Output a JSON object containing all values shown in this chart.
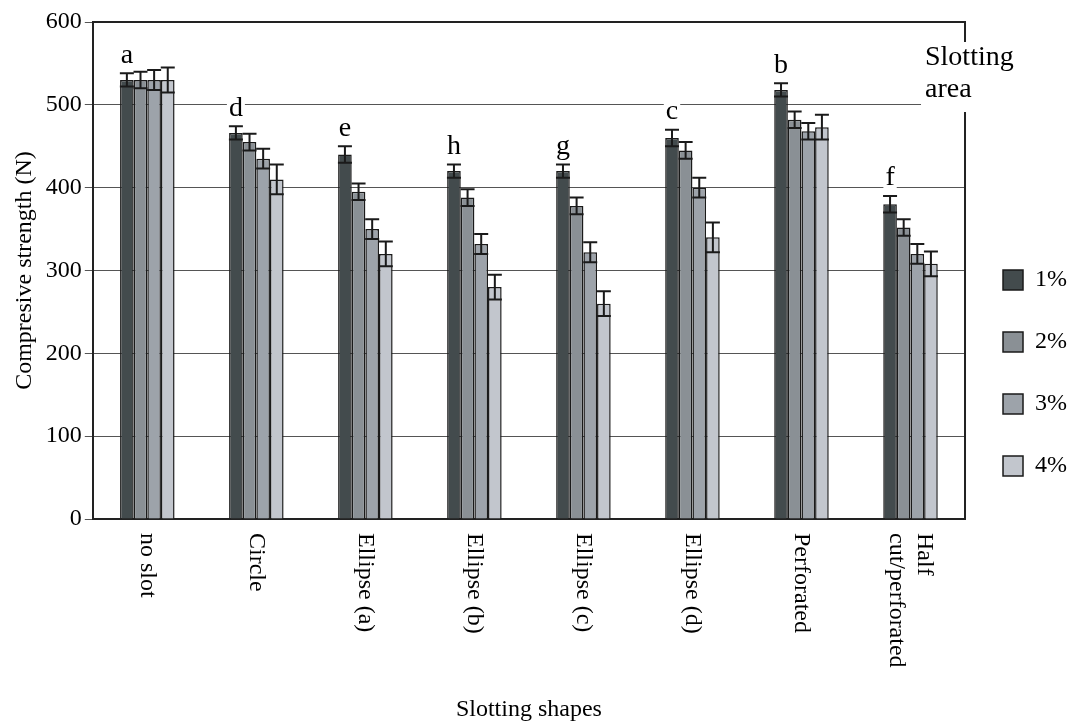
{
  "chart_data": {
    "type": "bar",
    "xlabel": "Slotting shapes",
    "ylabel": "Compresive strength (N)",
    "categories": [
      "no slot",
      "Circle",
      "Ellipse (a)",
      "Ellipse (b)",
      "Ellipse (c)",
      "Ellipse (d)",
      "Perforated",
      "Half cut/perforated"
    ],
    "series": [
      {
        "name": "1%",
        "color": "#434b4d",
        "values": [
          530,
          466,
          440,
          420,
          420,
          460,
          518,
          380
        ],
        "errors": [
          8,
          8,
          10,
          8,
          8,
          10,
          8,
          10
        ]
      },
      {
        "name": "2%",
        "color": "#8a9095",
        "values": [
          530,
          455,
          395,
          388,
          378,
          445,
          482,
          352
        ],
        "errors": [
          10,
          10,
          10,
          10,
          10,
          10,
          10,
          10
        ]
      },
      {
        "name": "3%",
        "color": "#9da3aa",
        "values": [
          530,
          435,
          350,
          332,
          322,
          400,
          468,
          320
        ],
        "errors": [
          12,
          12,
          12,
          12,
          12,
          12,
          10,
          12
        ]
      },
      {
        "name": "4%",
        "color": "#c2c6cd",
        "values": [
          530,
          410,
          320,
          280,
          260,
          340,
          473,
          308
        ],
        "errors": [
          15,
          18,
          15,
          15,
          15,
          18,
          15,
          15
        ]
      }
    ],
    "ylim": [
      0,
      600
    ],
    "yticks": [
      0,
      100,
      200,
      300,
      400,
      500,
      600
    ],
    "grid": "y",
    "legend": "right",
    "annotations": [
      "a",
      "d",
      "e",
      "h",
      "g",
      "c",
      "b",
      "f",
      "Slotting area"
    ]
  }
}
